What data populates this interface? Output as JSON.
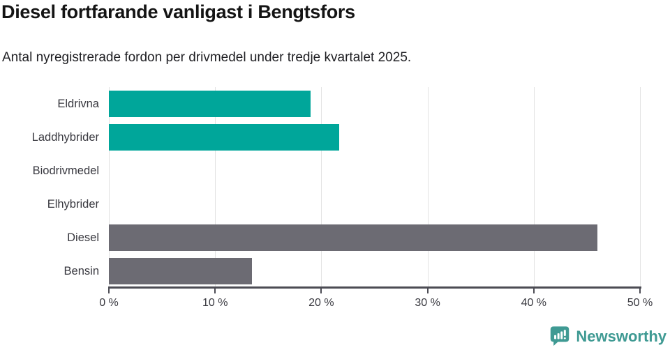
{
  "title": "Diesel fortfarande vanligast i Bengtsfors",
  "subtitle": "Antal nyregistrerade fordon per drivmedel under tredje kvartalet 2025.",
  "chart_data": {
    "type": "bar",
    "orientation": "horizontal",
    "title": "Diesel fortfarande vanligast i Bengtsfors",
    "subtitle": "Antal nyregistrerade fordon per drivmedel under tredje kvartalet 2025.",
    "categories": [
      "Eldrivna",
      "Laddhybrider",
      "Biodrivmedel",
      "Elhybrider",
      "Diesel",
      "Bensin"
    ],
    "values": [
      19,
      21.7,
      0,
      0,
      46,
      13.5
    ],
    "unit": "%",
    "xlim": [
      0,
      50
    ],
    "x_tick_values": [
      0,
      10,
      20,
      30,
      40,
      50
    ],
    "x_tick_labels": [
      "0 %",
      "10 %",
      "20 %",
      "30 %",
      "40 %",
      "50 %"
    ],
    "grid": true,
    "legend": "none",
    "bar_colors": [
      "#00a69a",
      "#00a69a",
      "#00a69a",
      "#00a69a",
      "#6c6b73",
      "#6c6b73"
    ]
  },
  "colors": {
    "teal_bar": "#00a69a",
    "gray_bar": "#6c6b73",
    "gridline": "#e2e2e2",
    "axis": "#4c4c54",
    "title_text": "#141414",
    "label_text": "#38383f",
    "brand_teal": "#3f9a93"
  },
  "footer": {
    "brand_label": "Newsworthy"
  }
}
